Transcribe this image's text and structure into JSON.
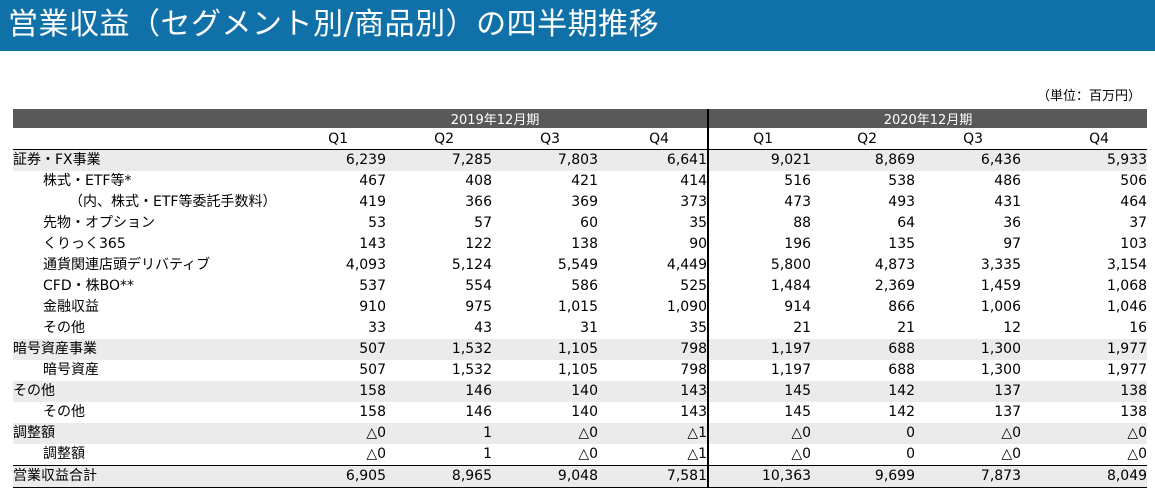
{
  "header": {
    "title": "営業収益（セグメント別/商品別）の四半期推移"
  },
  "unit_note": "（単位：百万円）",
  "periods": [
    "2019年12月期",
    "2020年12月期"
  ],
  "quarters": [
    "Q1",
    "Q2",
    "Q3",
    "Q4",
    "Q1",
    "Q2",
    "Q3",
    "Q4"
  ],
  "rows": [
    {
      "label": "証券・FX事業",
      "level": 0,
      "values": [
        "6,239",
        "7,285",
        "7,803",
        "6,641",
        "9,021",
        "8,869",
        "6,436",
        "5,933"
      ]
    },
    {
      "label": "株式・ETF等*",
      "level": 1,
      "values": [
        "467",
        "408",
        "421",
        "414",
        "516",
        "538",
        "486",
        "506"
      ]
    },
    {
      "label": "（内、株式・ETF等委託手数料）",
      "level": 2,
      "values": [
        "419",
        "366",
        "369",
        "373",
        "473",
        "493",
        "431",
        "464"
      ]
    },
    {
      "label": "先物・オプション",
      "level": 1,
      "values": [
        "53",
        "57",
        "60",
        "35",
        "88",
        "64",
        "36",
        "37"
      ]
    },
    {
      "label": "くりっく365",
      "level": 1,
      "values": [
        "143",
        "122",
        "138",
        "90",
        "196",
        "135",
        "97",
        "103"
      ]
    },
    {
      "label": "通貨関連店頭デリバティブ",
      "level": 1,
      "values": [
        "4,093",
        "5,124",
        "5,549",
        "4,449",
        "5,800",
        "4,873",
        "3,335",
        "3,154"
      ]
    },
    {
      "label": "CFD・株BO**",
      "level": 1,
      "values": [
        "537",
        "554",
        "586",
        "525",
        "1,484",
        "2,369",
        "1,459",
        "1,068"
      ]
    },
    {
      "label": "金融収益",
      "level": 1,
      "values": [
        "910",
        "975",
        "1,015",
        "1,090",
        "914",
        "866",
        "1,006",
        "1,046"
      ]
    },
    {
      "label": "その他",
      "level": 1,
      "values": [
        "33",
        "43",
        "31",
        "35",
        "21",
        "21",
        "12",
        "16"
      ]
    },
    {
      "label": "暗号資産事業",
      "level": 0,
      "values": [
        "507",
        "1,532",
        "1,105",
        "798",
        "1,197",
        "688",
        "1,300",
        "1,977"
      ]
    },
    {
      "label": "暗号資産",
      "level": 1,
      "values": [
        "507",
        "1,532",
        "1,105",
        "798",
        "1,197",
        "688",
        "1,300",
        "1,977"
      ]
    },
    {
      "label": "その他",
      "level": 0,
      "values": [
        "158",
        "146",
        "140",
        "143",
        "145",
        "142",
        "137",
        "138"
      ]
    },
    {
      "label": "その他",
      "level": 1,
      "values": [
        "158",
        "146",
        "140",
        "143",
        "145",
        "142",
        "137",
        "138"
      ]
    },
    {
      "label": "調整額",
      "level": 0,
      "values": [
        "△0",
        "1",
        "△0",
        "△1",
        "△0",
        "0",
        "△0",
        "△0"
      ]
    },
    {
      "label": "調整額",
      "level": 1,
      "values": [
        "△0",
        "1",
        "△0",
        "△1",
        "△0",
        "0",
        "△0",
        "△0"
      ]
    },
    {
      "label": "営業収益合計",
      "level": 0,
      "total": true,
      "values": [
        "6,905",
        "8,965",
        "9,048",
        "7,581",
        "10,363",
        "9,699",
        "7,873",
        "8,049"
      ]
    }
  ]
}
